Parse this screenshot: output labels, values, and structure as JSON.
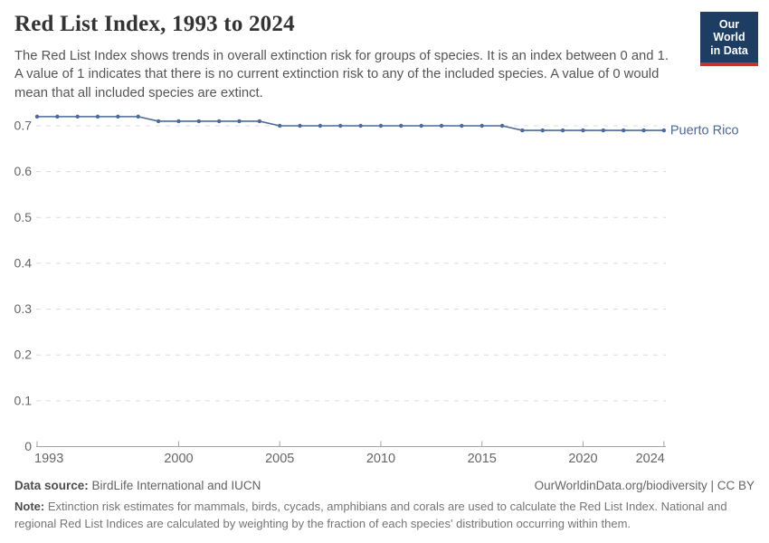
{
  "header": {
    "title": "Red List Index, 1993 to 2024",
    "subtitle": "The Red List Index shows trends in overall extinction risk for groups of species. It is an index between 0 and 1. A value of 1 indicates that there is no current extinction risk to any of the included species. A value of 0 would mean that all included species are extinct.",
    "logo": {
      "line1": "Our World",
      "line2": "in Data",
      "bg_color": "#1d3d63",
      "bar_color": "#c0362c"
    }
  },
  "chart_data": {
    "type": "line",
    "title": "Red List Index, 1993 to 2024",
    "x": [
      1993,
      1994,
      1995,
      1996,
      1997,
      1998,
      1999,
      2000,
      2001,
      2002,
      2003,
      2004,
      2005,
      2006,
      2007,
      2008,
      2009,
      2010,
      2011,
      2012,
      2013,
      2014,
      2015,
      2016,
      2017,
      2018,
      2019,
      2020,
      2021,
      2022,
      2023,
      2024
    ],
    "series": [
      {
        "name": "Puerto Rico",
        "color": "#4C6A9C",
        "values": [
          0.72,
          0.72,
          0.72,
          0.72,
          0.72,
          0.72,
          0.71,
          0.71,
          0.71,
          0.71,
          0.71,
          0.71,
          0.7,
          0.7,
          0.7,
          0.7,
          0.7,
          0.7,
          0.7,
          0.7,
          0.7,
          0.7,
          0.7,
          0.7,
          0.69,
          0.69,
          0.69,
          0.69,
          0.69,
          0.69,
          0.69,
          0.69
        ]
      }
    ],
    "xlabel": "",
    "ylabel": "",
    "x_ticks": [
      1993,
      2000,
      2005,
      2010,
      2015,
      2020,
      2024
    ],
    "y_ticks": [
      0,
      0.1,
      0.2,
      0.3,
      0.4,
      0.5,
      0.6,
      0.7
    ],
    "ylim": [
      0,
      0.75
    ],
    "xlim": [
      1993,
      2024
    ],
    "grid": "horizontal-dashed",
    "legend_position": "end-of-line-label",
    "colors": {
      "grid": "#dcdcdc",
      "axis": "#a3a3a3",
      "tick_label": "#666666"
    }
  },
  "footer": {
    "datasource_label": "Data source:",
    "datasource_value": " BirdLife International and IUCN",
    "attribution": "OurWorldinData.org/biodiversity | CC BY",
    "note_label": "Note:",
    "note_value": " Extinction risk estimates for mammals, birds, cycads, amphibians and corals are used to calculate the Red List Index. National and regional Red List Indices are calculated by weighting by the fraction of each species' distribution occurring within them."
  }
}
